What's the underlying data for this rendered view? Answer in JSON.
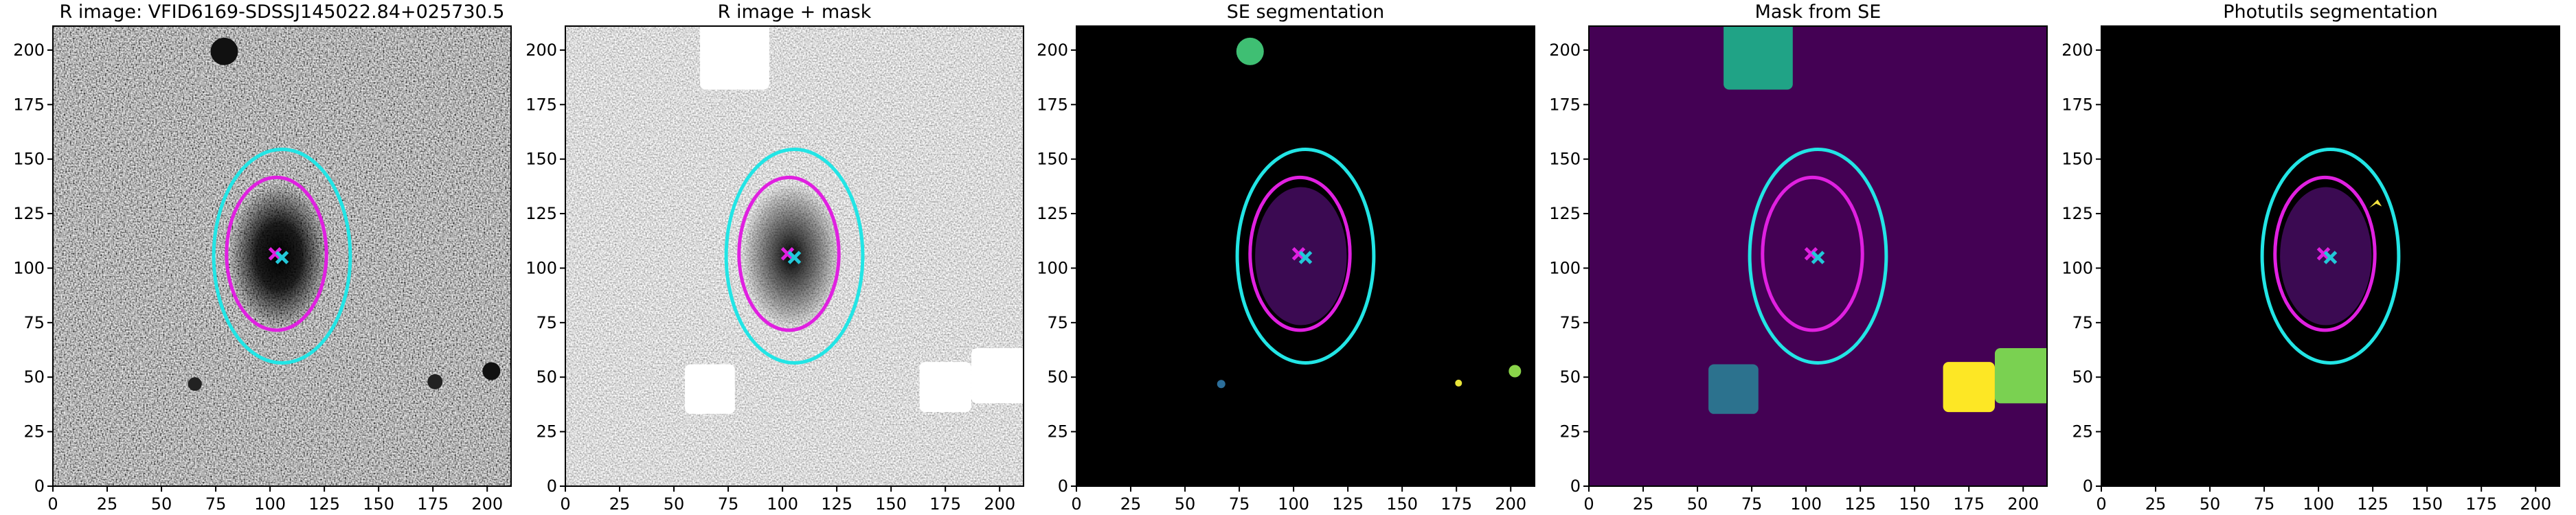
{
  "chart_data": [
    {
      "type": "image",
      "title": "R image: VFID6169-SDSSJ145022.84+025730.5",
      "xlim": [
        0,
        211
      ],
      "ylim": [
        0,
        211
      ],
      "xticks": [
        0,
        25,
        50,
        75,
        100,
        125,
        150,
        175,
        200
      ],
      "yticks": [
        0,
        25,
        50,
        75,
        100,
        125,
        150,
        175,
        200
      ]
    },
    {
      "type": "image",
      "title": "R image + mask",
      "xlim": [
        0,
        211
      ],
      "ylim": [
        0,
        211
      ],
      "xticks": [
        0,
        25,
        50,
        75,
        100,
        125,
        150,
        175,
        200
      ],
      "yticks": [
        0,
        25,
        50,
        75,
        100,
        125,
        150,
        175,
        200
      ]
    },
    {
      "type": "image",
      "title": "SE segmentation",
      "xlim": [
        0,
        211
      ],
      "ylim": [
        0,
        211
      ],
      "xticks": [
        0,
        25,
        50,
        75,
        100,
        125,
        150,
        175,
        200
      ],
      "yticks": [
        0,
        25,
        50,
        75,
        100,
        125,
        150,
        175,
        200
      ]
    },
    {
      "type": "image",
      "title": "Mask from SE",
      "xlim": [
        0,
        211
      ],
      "ylim": [
        0,
        211
      ],
      "xticks": [
        0,
        25,
        50,
        75,
        100,
        125,
        150,
        175,
        200
      ],
      "yticks": [
        0,
        25,
        50,
        75,
        100,
        125,
        150,
        175,
        200
      ]
    },
    {
      "type": "image",
      "title": "Photutils segmentation",
      "xlim": [
        0,
        211
      ],
      "ylim": [
        0,
        211
      ],
      "xticks": [
        0,
        25,
        50,
        75,
        100,
        125,
        150,
        175,
        200
      ],
      "yticks": [
        0,
        25,
        50,
        75,
        100,
        125,
        150,
        175,
        200
      ]
    }
  ]
}
